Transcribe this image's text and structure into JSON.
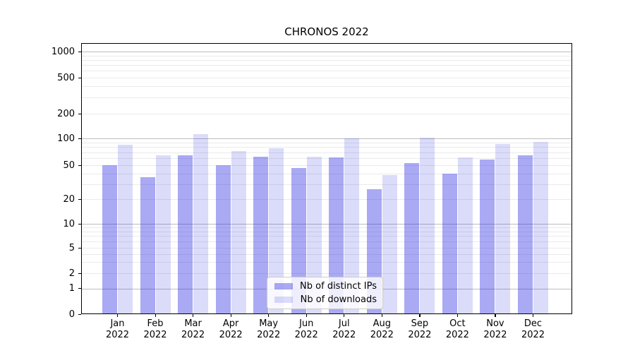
{
  "title": "CHRONOS 2022",
  "chart_data": {
    "type": "bar",
    "title": "CHRONOS 2022",
    "x_categories": [
      {
        "month": "Jan",
        "year": "2022"
      },
      {
        "month": "Feb",
        "year": "2022"
      },
      {
        "month": "Mar",
        "year": "2022"
      },
      {
        "month": "Apr",
        "year": "2022"
      },
      {
        "month": "May",
        "year": "2022"
      },
      {
        "month": "Jun",
        "year": "2022"
      },
      {
        "month": "Jul",
        "year": "2022"
      },
      {
        "month": "Aug",
        "year": "2022"
      },
      {
        "month": "Sep",
        "year": "2022"
      },
      {
        "month": "Oct",
        "year": "2022"
      },
      {
        "month": "Nov",
        "year": "2022"
      },
      {
        "month": "Dec",
        "year": "2022"
      }
    ],
    "series": [
      {
        "name": "Nb of distinct IPs",
        "color": "rgba(30,30,225,0.38)",
        "values": [
          50,
          36,
          65,
          50,
          62,
          46,
          61,
          26,
          53,
          40,
          58,
          65
        ]
      },
      {
        "name": "Nb of downloads",
        "color": "rgba(30,30,225,0.16)",
        "values": [
          85,
          65,
          112,
          72,
          78,
          62,
          100,
          38,
          102,
          61,
          86,
          91
        ]
      }
    ],
    "y_axis": {
      "scale": "asinh-like (logarithmic above 1, compressed linear near 0)",
      "ticks": [
        0,
        1,
        2,
        5,
        10,
        20,
        50,
        100,
        200,
        500,
        1000
      ],
      "major_gridlines": [
        1,
        10,
        100,
        1000
      ],
      "minor_gridlines": [
        2,
        3,
        4,
        5,
        6,
        7,
        8,
        9,
        20,
        30,
        40,
        50,
        60,
        70,
        80,
        90,
        200,
        300,
        400,
        500,
        600,
        700,
        800,
        900
      ],
      "ylim": [
        0,
        1300
      ]
    },
    "legend_position": "lower center",
    "grid": true,
    "colors": {
      "grid_major": "#bdbdbd",
      "grid_minor": "#eaeaea",
      "axis": "#000000"
    }
  }
}
